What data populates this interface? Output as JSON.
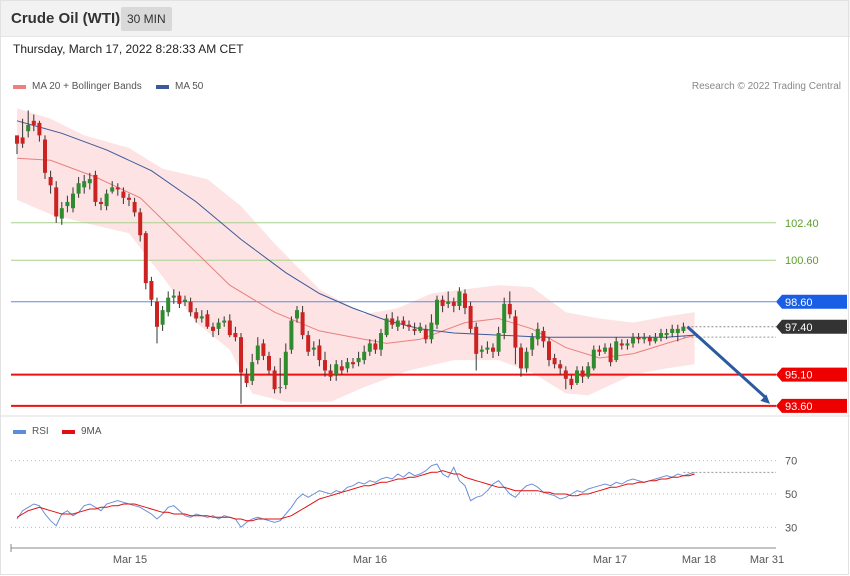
{
  "header": {
    "title": "Crude Oil (WTI)",
    "timeframe": "30 MIN",
    "datetime": "Thursday, March 17, 2022 8:28:33 AM CET"
  },
  "legend": {
    "ma20": "MA 20 + Bollinger Bands",
    "ma50": "MA 50",
    "credit": "Research © 2022 Trading Central"
  },
  "rsi_legend": {
    "rsi": "RSI",
    "ma9": "9MA"
  },
  "colors": {
    "bull": "#2e8b2e",
    "bear": "#cc2222",
    "band_fill": "#fde3e3",
    "ma20": "#e88080",
    "ma50": "#3c5a99",
    "support": "#ee1111",
    "resistance_green": "#a9d18e",
    "pivot_blue": "#5a8de0",
    "arrow": "#2a5aa0",
    "current": "#333333"
  },
  "chart_data": [
    {
      "type": "candlestick",
      "y_range": [
        93.4,
        108.3
      ],
      "x_labels": [
        "Mar 15",
        "Mar 16",
        "Mar 17",
        "Mar 18",
        "Mar 31"
      ],
      "levels": [
        {
          "label": "102.40",
          "value": 102.4,
          "kind": "resistance"
        },
        {
          "label": "100.60",
          "value": 100.6,
          "kind": "resistance"
        },
        {
          "label": "98.60",
          "value": 98.6,
          "kind": "pivot"
        },
        {
          "label": "97.40",
          "value": 97.4,
          "kind": "current"
        },
        {
          "label": "95.10",
          "value": 95.1,
          "kind": "support"
        },
        {
          "label": "93.60",
          "value": 93.6,
          "kind": "support"
        }
      ],
      "candles": [
        [
          106.6,
          106.2,
          106.4,
          105.7
        ],
        [
          106.5,
          106.2,
          107.4,
          106.0
        ],
        [
          106.8,
          107.1,
          107.8,
          106.5
        ],
        [
          107.3,
          107.1,
          107.6,
          106.8
        ],
        [
          107.2,
          106.6,
          107.3,
          106.3
        ],
        [
          106.4,
          104.8,
          106.6,
          104.5
        ],
        [
          104.6,
          104.2,
          104.9,
          103.8
        ],
        [
          104.1,
          102.7,
          104.4,
          102.4
        ],
        [
          102.6,
          103.1,
          103.4,
          102.3
        ],
        [
          103.2,
          103.4,
          103.7,
          102.9
        ],
        [
          103.1,
          103.8,
          104.1,
          102.9
        ],
        [
          103.8,
          104.3,
          104.6,
          103.6
        ],
        [
          104.1,
          104.4,
          104.7,
          103.8
        ],
        [
          104.3,
          104.5,
          104.8,
          104.0
        ],
        [
          104.7,
          103.4,
          104.9,
          103.2
        ],
        [
          103.4,
          103.3,
          103.6,
          103.0
        ],
        [
          103.2,
          103.8,
          104.0,
          103.0
        ],
        [
          103.9,
          104.1,
          104.4,
          103.8
        ],
        [
          104.1,
          104.0,
          104.3,
          103.7
        ],
        [
          103.9,
          103.6,
          104.1,
          103.3
        ],
        [
          103.6,
          103.5,
          103.8,
          103.2
        ],
        [
          103.4,
          102.9,
          103.6,
          102.7
        ],
        [
          102.9,
          101.8,
          103.1,
          101.5
        ],
        [
          101.9,
          99.5,
          102.0,
          99.2
        ],
        [
          99.6,
          98.7,
          99.8,
          98.4
        ],
        [
          98.6,
          97.4,
          98.8,
          96.6
        ],
        [
          97.5,
          98.2,
          98.4,
          97.2
        ],
        [
          98.1,
          98.8,
          99.1,
          97.9
        ],
        [
          98.8,
          98.9,
          99.2,
          98.5
        ],
        [
          98.9,
          98.5,
          99.1,
          98.3
        ],
        [
          98.6,
          98.7,
          98.9,
          98.4
        ],
        [
          98.6,
          98.1,
          98.8,
          97.9
        ],
        [
          98.1,
          97.8,
          98.3,
          97.6
        ],
        [
          97.8,
          97.9,
          98.2,
          97.6
        ],
        [
          98.0,
          97.4,
          98.2,
          97.3
        ],
        [
          97.4,
          97.2,
          97.6,
          96.9
        ],
        [
          97.3,
          97.6,
          97.8,
          97.0
        ],
        [
          97.6,
          97.7,
          97.9,
          97.4
        ],
        [
          97.7,
          97.0,
          98.0,
          96.9
        ],
        [
          97.1,
          96.9,
          97.4,
          96.7
        ],
        [
          96.9,
          95.2,
          97.1,
          93.7
        ],
        [
          95.1,
          94.7,
          95.4,
          94.5
        ],
        [
          94.8,
          95.7,
          96.1,
          94.6
        ],
        [
          95.8,
          96.5,
          96.9,
          95.6
        ],
        [
          96.6,
          96.0,
          96.8,
          95.8
        ],
        [
          96.0,
          95.3,
          96.2,
          95.1
        ],
        [
          95.3,
          94.4,
          95.5,
          94.2
        ],
        [
          94.5,
          94.5,
          95.9,
          94.2
        ],
        [
          94.6,
          96.2,
          96.6,
          94.4
        ],
        [
          96.3,
          97.7,
          97.9,
          96.1
        ],
        [
          97.8,
          98.2,
          98.4,
          97.6
        ],
        [
          98.1,
          97.0,
          98.4,
          96.8
        ],
        [
          97.0,
          96.2,
          97.2,
          96.0
        ],
        [
          96.3,
          96.4,
          96.7,
          96.0
        ],
        [
          96.5,
          95.8,
          96.8,
          95.5
        ],
        [
          95.8,
          95.3,
          96.2,
          95.0
        ],
        [
          95.3,
          95.0,
          95.6,
          94.8
        ],
        [
          95.1,
          95.6,
          95.8,
          94.8
        ],
        [
          95.5,
          95.3,
          95.8,
          95.1
        ],
        [
          95.4,
          95.7,
          95.9,
          95.2
        ],
        [
          95.7,
          95.6,
          95.9,
          95.4
        ],
        [
          95.7,
          95.9,
          96.2,
          95.5
        ],
        [
          95.8,
          96.2,
          96.5,
          95.6
        ],
        [
          96.2,
          96.6,
          96.8,
          96.0
        ],
        [
          96.6,
          96.3,
          96.8,
          96.1
        ],
        [
          96.3,
          97.1,
          97.3,
          96.0
        ],
        [
          97.0,
          97.8,
          98.0,
          96.9
        ],
        [
          97.8,
          97.5,
          98.1,
          97.3
        ],
        [
          97.4,
          97.7,
          97.9,
          97.2
        ],
        [
          97.7,
          97.5,
          97.9,
          97.3
        ],
        [
          97.5,
          97.4,
          97.7,
          97.2
        ],
        [
          97.3,
          97.2,
          97.6,
          97.0
        ],
        [
          97.2,
          97.4,
          97.6,
          97.1
        ],
        [
          97.3,
          96.8,
          97.5,
          96.6
        ],
        [
          96.8,
          97.6,
          98.0,
          96.6
        ],
        [
          97.5,
          98.7,
          98.9,
          97.3
        ],
        [
          98.7,
          98.4,
          98.9,
          98.1
        ],
        [
          98.5,
          98.6,
          99.1,
          98.3
        ],
        [
          98.6,
          98.4,
          98.8,
          98.1
        ],
        [
          98.4,
          99.1,
          99.3,
          98.2
        ],
        [
          99.0,
          98.3,
          99.2,
          98.0
        ],
        [
          98.4,
          97.3,
          98.6,
          97.1
        ],
        [
          97.4,
          96.1,
          97.6,
          95.3
        ],
        [
          96.2,
          96.3,
          96.5,
          95.9
        ],
        [
          96.3,
          96.4,
          96.7,
          96.1
        ],
        [
          96.4,
          96.2,
          96.6,
          95.9
        ],
        [
          96.2,
          97.1,
          97.4,
          96.0
        ],
        [
          97.1,
          98.5,
          98.8,
          96.8
        ],
        [
          98.5,
          98.0,
          99.1,
          97.8
        ],
        [
          97.9,
          96.4,
          98.2,
          95.6
        ],
        [
          96.4,
          95.4,
          96.6,
          95.0
        ],
        [
          95.4,
          96.2,
          96.4,
          95.2
        ],
        [
          96.3,
          96.9,
          97.1,
          96.0
        ],
        [
          96.8,
          97.3,
          97.6,
          96.5
        ],
        [
          97.2,
          96.7,
          97.4,
          96.4
        ],
        [
          96.7,
          95.8,
          96.9,
          95.5
        ],
        [
          95.9,
          95.6,
          96.1,
          95.4
        ],
        [
          95.6,
          95.4,
          95.8,
          95.1
        ],
        [
          95.3,
          94.9,
          95.5,
          94.4
        ],
        [
          94.9,
          94.6,
          95.1,
          94.4
        ],
        [
          94.7,
          95.3,
          95.5,
          94.6
        ],
        [
          95.3,
          95.0,
          95.5,
          94.7
        ],
        [
          95.0,
          95.5,
          95.7,
          94.9
        ],
        [
          95.4,
          96.3,
          96.5,
          95.3
        ],
        [
          96.3,
          96.2,
          96.5,
          96.0
        ],
        [
          96.2,
          96.4,
          96.6,
          96.1
        ],
        [
          96.4,
          95.7,
          96.6,
          95.5
        ],
        [
          95.8,
          96.7,
          96.9,
          95.7
        ],
        [
          96.6,
          96.5,
          96.8,
          96.3
        ],
        [
          96.5,
          96.6,
          96.8,
          96.3
        ],
        [
          96.6,
          96.9,
          97.1,
          96.4
        ],
        [
          96.9,
          96.8,
          97.1,
          96.6
        ],
        [
          96.8,
          96.9,
          97.1,
          96.6
        ],
        [
          96.9,
          96.7,
          97.0,
          96.5
        ],
        [
          96.7,
          96.9,
          97.1,
          96.6
        ],
        [
          96.9,
          97.1,
          97.3,
          96.7
        ],
        [
          97.0,
          97.1,
          97.3,
          96.8
        ],
        [
          97.1,
          97.3,
          97.5,
          96.9
        ],
        [
          97.1,
          97.3,
          97.5,
          96.7
        ],
        [
          97.2,
          97.4,
          97.6,
          97.1
        ]
      ],
      "ma20": [
        [
          0,
          105.5
        ],
        [
          6,
          105.4
        ],
        [
          14,
          104.6
        ],
        [
          22,
          103.6
        ],
        [
          30,
          101.5
        ],
        [
          38,
          99.4
        ],
        [
          46,
          98.1
        ],
        [
          54,
          97.2
        ],
        [
          60,
          96.9
        ],
        [
          66,
          96.6
        ],
        [
          72,
          96.8
        ],
        [
          80,
          97.6
        ],
        [
          86,
          97.8
        ],
        [
          92,
          97.3
        ],
        [
          98,
          96.4
        ],
        [
          104,
          95.9
        ],
        [
          110,
          96.1
        ],
        [
          116,
          96.6
        ],
        [
          121,
          97.0
        ]
      ],
      "ma50": [
        [
          0,
          107.3
        ],
        [
          8,
          106.7
        ],
        [
          16,
          105.9
        ],
        [
          24,
          104.9
        ],
        [
          32,
          103.4
        ],
        [
          40,
          101.6
        ],
        [
          48,
          100.0
        ],
        [
          54,
          99.0
        ],
        [
          60,
          98.3
        ],
        [
          66,
          97.7
        ],
        [
          72,
          97.3
        ],
        [
          78,
          97.1
        ],
        [
          86,
          97.0
        ],
        [
          94,
          96.9
        ],
        [
          102,
          96.9
        ],
        [
          110,
          96.9
        ],
        [
          116,
          96.9
        ],
        [
          121,
          97.0
        ]
      ],
      "bb_upper": [
        [
          0,
          107.9
        ],
        [
          6,
          107.4
        ],
        [
          12,
          106.6
        ],
        [
          20,
          106.0
        ],
        [
          26,
          105.0
        ],
        [
          34,
          104.5
        ],
        [
          40,
          103.2
        ],
        [
          46,
          101.4
        ],
        [
          54,
          99.2
        ],
        [
          62,
          98.0
        ],
        [
          68,
          98.3
        ],
        [
          74,
          99.0
        ],
        [
          80,
          99.2
        ],
        [
          86,
          99.4
        ],
        [
          92,
          99.3
        ],
        [
          98,
          98.1
        ],
        [
          104,
          97.8
        ],
        [
          110,
          97.6
        ],
        [
          116,
          97.9
        ],
        [
          121,
          98.1
        ]
      ],
      "bb_lower": [
        [
          0,
          103.5
        ],
        [
          6,
          102.8
        ],
        [
          12,
          102.4
        ],
        [
          20,
          101.9
        ],
        [
          26,
          99.8
        ],
        [
          32,
          97.6
        ],
        [
          38,
          96.3
        ],
        [
          42,
          94.2
        ],
        [
          48,
          93.8
        ],
        [
          56,
          93.8
        ],
        [
          62,
          94.5
        ],
        [
          70,
          95.3
        ],
        [
          78,
          95.8
        ],
        [
          86,
          95.8
        ],
        [
          92,
          95.2
        ],
        [
          98,
          94.2
        ],
        [
          102,
          94.1
        ],
        [
          110,
          95.1
        ],
        [
          116,
          95.4
        ],
        [
          121,
          95.6
        ]
      ],
      "projection": {
        "from": 97.4,
        "to": 93.6
      }
    },
    {
      "type": "line",
      "name": "RSI",
      "y_range": [
        20,
        80
      ],
      "ticks": [
        70,
        50,
        30
      ],
      "rsi": [
        35,
        40,
        42,
        44,
        43,
        38,
        34,
        31,
        38,
        40,
        37,
        39,
        43,
        44,
        42,
        40,
        44,
        45,
        46,
        45,
        44,
        43,
        42,
        40,
        38,
        35,
        38,
        42,
        43,
        40,
        37,
        36,
        38,
        37,
        36,
        37,
        35,
        37,
        36,
        35,
        30,
        33,
        35,
        36,
        35,
        34,
        33,
        34,
        38,
        42,
        47,
        50,
        48,
        50,
        52,
        51,
        50,
        52,
        51,
        54,
        55,
        57,
        56,
        58,
        57,
        59,
        60,
        59,
        62,
        60,
        63,
        61,
        62,
        64,
        67,
        68,
        62,
        60,
        66,
        58,
        55,
        46,
        48,
        49,
        52,
        56,
        58,
        54,
        50,
        48,
        52,
        55,
        56,
        54,
        51,
        50,
        49,
        47,
        48,
        50,
        52,
        51,
        53,
        54,
        55,
        56,
        55,
        57,
        56,
        58,
        59,
        58,
        57,
        58,
        59,
        60,
        61,
        60,
        62,
        61,
        62,
        63
      ],
      "ma9": [
        36,
        38,
        40,
        41,
        42,
        41,
        40,
        39,
        38,
        38,
        38,
        39,
        40,
        41,
        41,
        42,
        42,
        43,
        43,
        44,
        44,
        44,
        43,
        42,
        41,
        40,
        39,
        39,
        38,
        38,
        38,
        37,
        37,
        37,
        37,
        36,
        36,
        36,
        36,
        35,
        35,
        34,
        34,
        35,
        35,
        35,
        35,
        35,
        36,
        37,
        39,
        41,
        43,
        45,
        47,
        48,
        49,
        50,
        51,
        52,
        53,
        54,
        55,
        55,
        56,
        57,
        57,
        58,
        59,
        59,
        60,
        60,
        61,
        62,
        63,
        63,
        64,
        63,
        62,
        62,
        60,
        59,
        58,
        57,
        56,
        55,
        54,
        54,
        53,
        52,
        52,
        52,
        52,
        52,
        51,
        51,
        50,
        50,
        50,
        49,
        49,
        50,
        50,
        51,
        52,
        53,
        54,
        54,
        55,
        56,
        56,
        57,
        57,
        58,
        58,
        59,
        59,
        60,
        60,
        61,
        61,
        62
      ]
    }
  ]
}
